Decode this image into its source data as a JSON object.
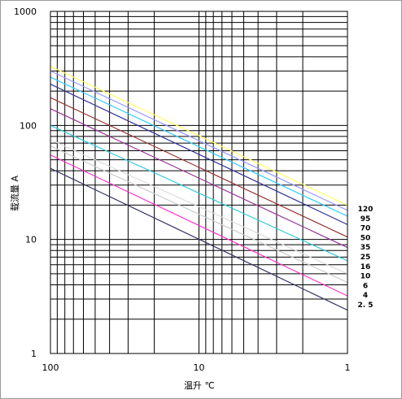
{
  "chart_data": {
    "type": "line",
    "title": "",
    "xlabel": "温升 ℃",
    "ylabel": "载流量 A",
    "x_scale": "log",
    "y_scale": "log",
    "x_reversed": true,
    "xlim": [
      100,
      1
    ],
    "ylim": [
      1,
      1000
    ],
    "x_ticks": [
      "100",
      "10",
      "1"
    ],
    "y_ticks": [
      "1000",
      "100",
      "10",
      "1"
    ],
    "grid": true,
    "series": [
      {
        "name": "120",
        "color": "#ffff66",
        "values": [
          [
            100,
            330
          ],
          [
            1,
            20
          ]
        ]
      },
      {
        "name": "95",
        "color": "#9999ff",
        "values": [
          [
            100,
            300
          ],
          [
            1,
            18
          ]
        ]
      },
      {
        "name": "70",
        "color": "#33ccff",
        "values": [
          [
            100,
            265
          ],
          [
            1,
            16
          ]
        ]
      },
      {
        "name": "50",
        "color": "#333399",
        "values": [
          [
            100,
            230
          ],
          [
            1,
            13.5
          ]
        ]
      },
      {
        "name": "35",
        "color": "#993333",
        "values": [
          [
            100,
            175
          ],
          [
            1,
            10.5
          ]
        ]
      },
      {
        "name": "25",
        "color": "#993399",
        "values": [
          [
            100,
            140
          ],
          [
            1,
            8.5
          ]
        ]
      },
      {
        "name": "16",
        "color": "#33ccdd",
        "values": [
          [
            100,
            100
          ],
          [
            1,
            6.5
          ]
        ]
      },
      {
        "name": "10",
        "color": "#dddddd",
        "values": [
          [
            100,
            75
          ],
          [
            1,
            5
          ]
        ]
      },
      {
        "name": "6",
        "color": "#cccccc",
        "values": [
          [
            100,
            66
          ],
          [
            1,
            4.2
          ]
        ]
      },
      {
        "name": "4",
        "color": "#ff33cc",
        "values": [
          [
            100,
            55
          ],
          [
            1,
            3.2
          ]
        ]
      },
      {
        "name": "2.5",
        "color": "#333366",
        "values": [
          [
            100,
            42
          ],
          [
            1,
            2.4
          ]
        ]
      }
    ]
  }
}
